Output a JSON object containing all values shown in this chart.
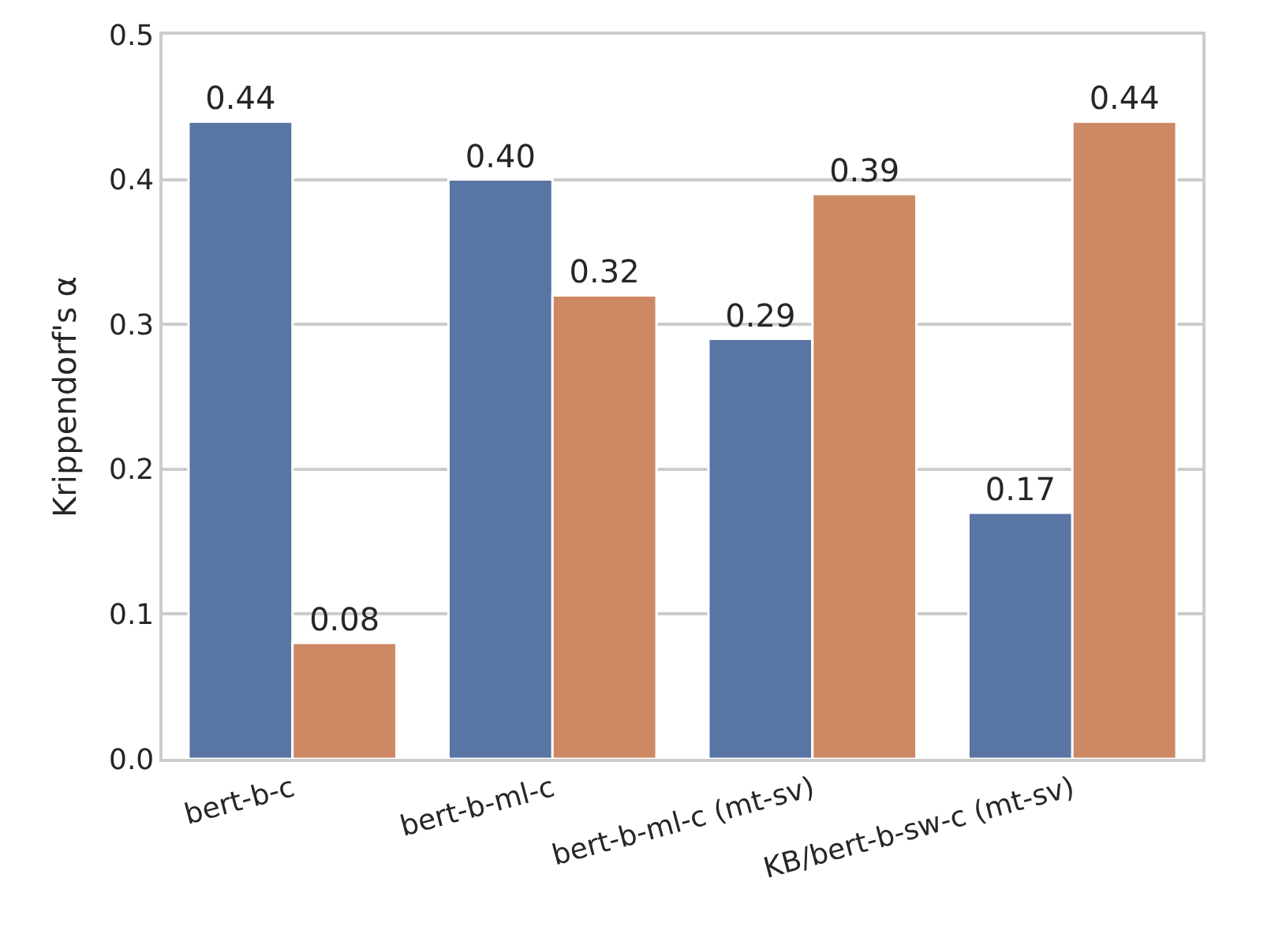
{
  "chart_data": {
    "type": "bar",
    "ylabel": "Krippendorf's α",
    "categories": [
      "bert-b-c",
      "bert-b-ml-c",
      "bert-b-ml-c (mt-sv)",
      "KB/bert-b-sw-c (mt-sv)"
    ],
    "series": [
      {
        "color": "#5875a4",
        "values": [
          0.44,
          0.4,
          0.29,
          0.17
        ],
        "value_labels": [
          "0.44",
          "0.40",
          "0.29",
          "0.17"
        ]
      },
      {
        "color": "#cc8963",
        "values": [
          0.08,
          0.32,
          0.39,
          0.44
        ],
        "value_labels": [
          "0.08",
          "0.32",
          "0.39",
          "0.44"
        ]
      }
    ],
    "ylim": [
      0,
      0.5
    ],
    "yticks": [
      {
        "value": 0,
        "label": "0.0"
      },
      0.1,
      0.2,
      0.3,
      0.4,
      0.5
    ],
    "grid": "y"
  }
}
